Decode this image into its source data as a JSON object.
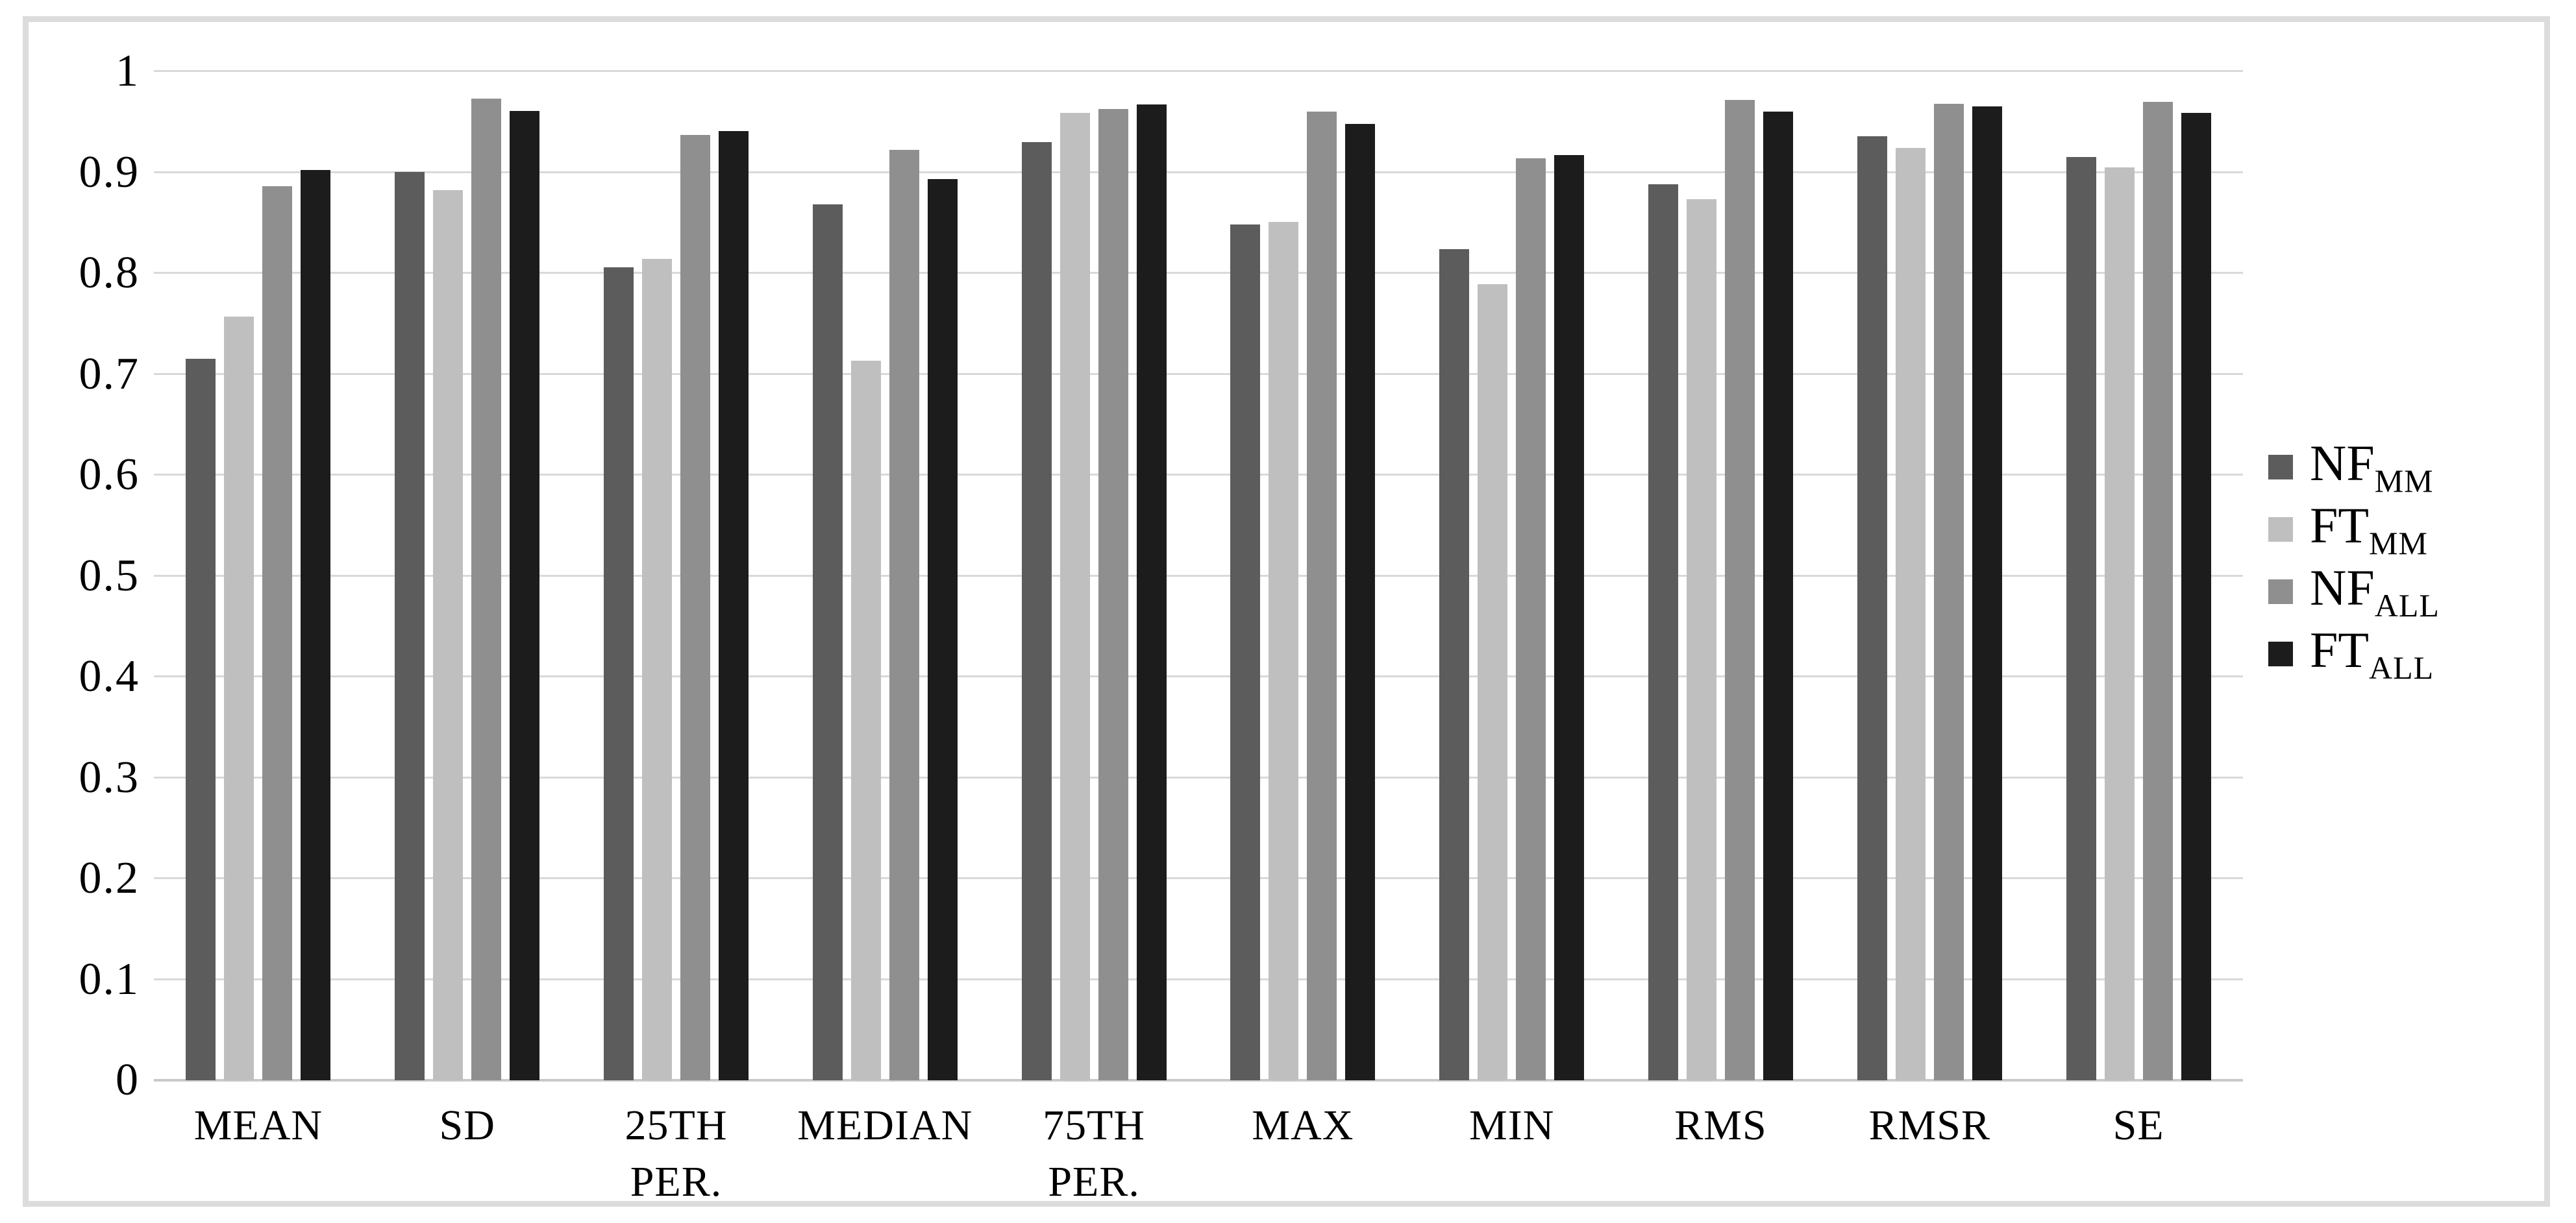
{
  "figure": {
    "background": "#ffffff",
    "frame_border_color": "#dcdcdc",
    "gridline_color": "#d9d9d9",
    "axis_line_color": "#c9c9c9",
    "text_color": "#000000"
  },
  "chart_data": {
    "type": "bar",
    "title": "",
    "xlabel": "",
    "ylabel": "",
    "ylim": [
      0,
      1
    ],
    "ytick_step": 0.1,
    "ytick_labels": [
      "1",
      "0.9",
      "0.8",
      "0.7",
      "0.6",
      "0.5",
      "0.4",
      "0.3",
      "0.2",
      "0.1",
      "0"
    ],
    "grid": true,
    "legend_position": "right",
    "categories": [
      "MEAN",
      "SD",
      "25TH\nPER.",
      "MEDIAN",
      "75TH\nPER.",
      "MAX",
      "MIN",
      "RMS",
      "RMSR",
      "SE"
    ],
    "series": [
      {
        "name": "NF",
        "subscript": "MM",
        "color": "#5c5c5c",
        "values": [
          0.715,
          0.9,
          0.806,
          0.868,
          0.93,
          0.848,
          0.824,
          0.888,
          0.936,
          0.915
        ]
      },
      {
        "name": "FT",
        "subscript": "MM",
        "color": "#bfbfbf",
        "values": [
          0.757,
          0.882,
          0.814,
          0.713,
          0.959,
          0.851,
          0.789,
          0.873,
          0.924,
          0.905
        ]
      },
      {
        "name": "NF",
        "subscript": "ALL",
        "color": "#8f8f8f",
        "values": [
          0.886,
          0.973,
          0.937,
          0.922,
          0.963,
          0.96,
          0.914,
          0.972,
          0.968,
          0.97
        ]
      },
      {
        "name": "FT",
        "subscript": "ALL",
        "color": "#1c1c1c",
        "values": [
          0.902,
          0.961,
          0.941,
          0.893,
          0.967,
          0.948,
          0.917,
          0.96,
          0.965,
          0.959
        ]
      }
    ]
  }
}
